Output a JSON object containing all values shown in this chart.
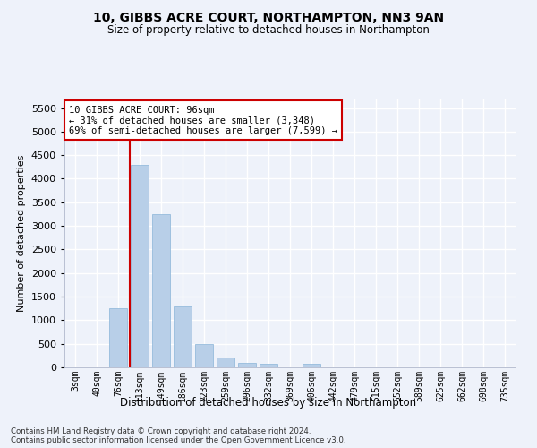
{
  "title": "10, GIBBS ACRE COURT, NORTHAMPTON, NN3 9AN",
  "subtitle": "Size of property relative to detached houses in Northampton",
  "xlabel": "Distribution of detached houses by size in Northampton",
  "ylabel": "Number of detached properties",
  "footnote1": "Contains HM Land Registry data © Crown copyright and database right 2024.",
  "footnote2": "Contains public sector information licensed under the Open Government Licence v3.0.",
  "annotation_title": "10 GIBBS ACRE COURT: 96sqm",
  "annotation_line1": "← 31% of detached houses are smaller (3,348)",
  "annotation_line2": "69% of semi-detached houses are larger (7,599) →",
  "bar_color": "#b8cfe8",
  "bar_edge_color": "#8ab4d8",
  "vline_color": "#cc0000",
  "categories": [
    "3sqm",
    "40sqm",
    "76sqm",
    "113sqm",
    "149sqm",
    "186sqm",
    "223sqm",
    "259sqm",
    "296sqm",
    "332sqm",
    "369sqm",
    "406sqm",
    "442sqm",
    "479sqm",
    "515sqm",
    "552sqm",
    "589sqm",
    "625sqm",
    "662sqm",
    "698sqm",
    "735sqm"
  ],
  "values": [
    0,
    0,
    1250,
    4300,
    3250,
    1300,
    500,
    200,
    100,
    75,
    0,
    75,
    0,
    0,
    0,
    0,
    0,
    0,
    0,
    0,
    0
  ],
  "ylim": [
    0,
    5700
  ],
  "yticks": [
    0,
    500,
    1000,
    1500,
    2000,
    2500,
    3000,
    3500,
    4000,
    4500,
    5000,
    5500
  ],
  "figsize": [
    6.0,
    5.0
  ],
  "dpi": 100,
  "bg_color": "#eef2fa",
  "grid_color": "#ffffff"
}
